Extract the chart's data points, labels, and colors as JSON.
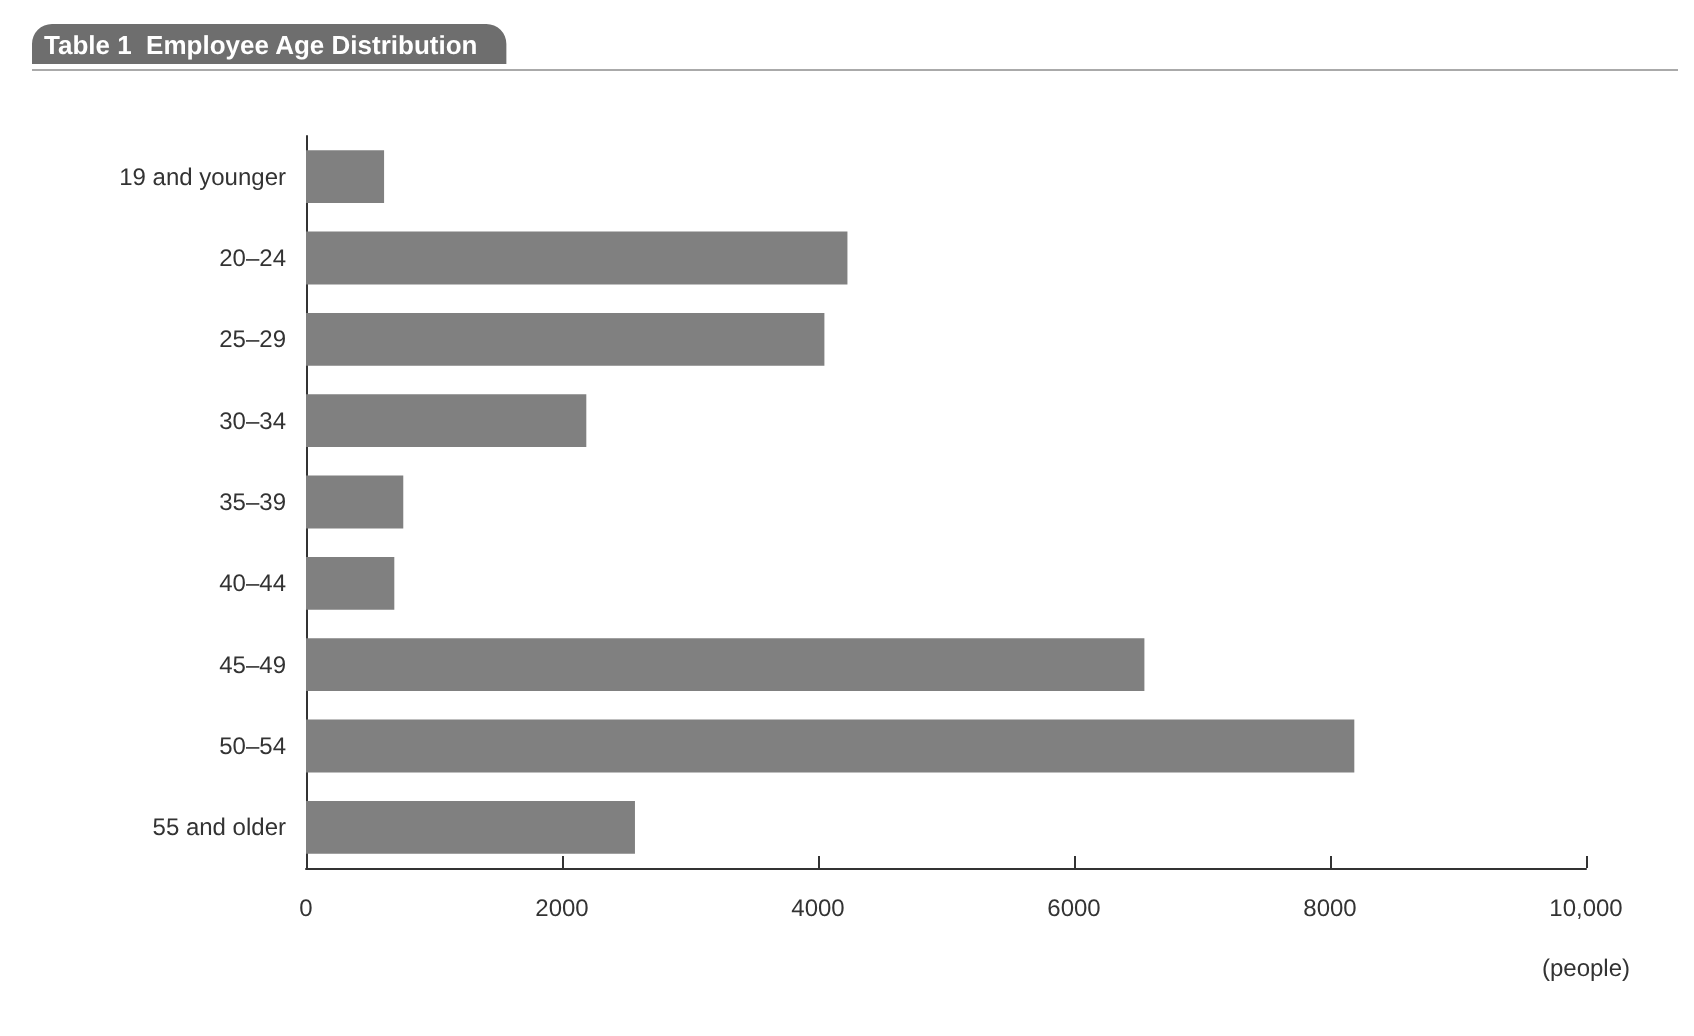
{
  "chart_data": {
    "type": "bar",
    "orientation": "horizontal",
    "title": "Table 1  Employee Age Distribution",
    "xlabel": "(people)",
    "categories": [
      "19 and younger",
      "20–24",
      "25–29",
      "30–34",
      "35–39",
      "40–44",
      "45–49",
      "50–54",
      "55 and older"
    ],
    "values": [
      610,
      4230,
      4050,
      2190,
      760,
      690,
      6550,
      8190,
      2570
    ],
    "color": "#808080",
    "xlim": [
      0,
      10000
    ],
    "xticks": [
      0,
      2000,
      4000,
      6000,
      8000,
      {
        "value": 10000,
        "label": "10,000"
      }
    ],
    "grid": false
  }
}
